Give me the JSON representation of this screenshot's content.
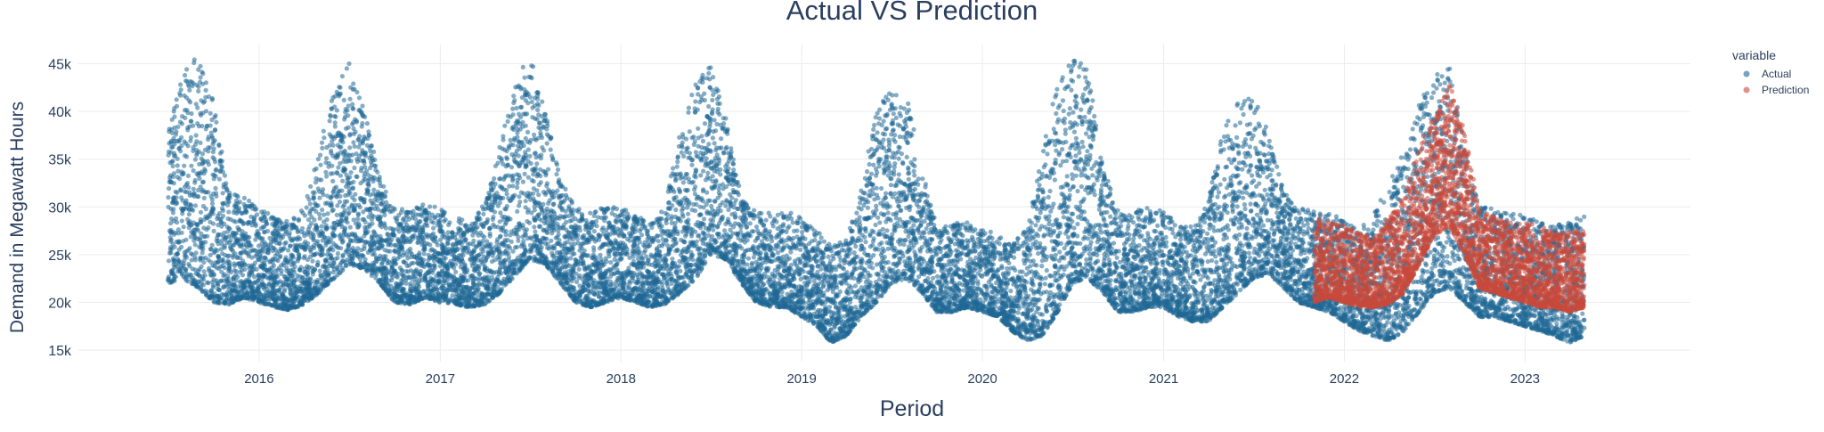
{
  "chart_data": {
    "type": "scatter",
    "title": "Actual VS Prediction",
    "xlabel": "Period",
    "ylabel": "Demand in Megawatt Hours",
    "x_ticks": [
      "2016",
      "2017",
      "2018",
      "2019",
      "2020",
      "2021",
      "2022",
      "2023"
    ],
    "y_ticks": [
      {
        "value": 15000,
        "label": "15k"
      },
      {
        "value": 20000,
        "label": "20k"
      },
      {
        "value": 25000,
        "label": "25k"
      },
      {
        "value": 30000,
        "label": "30k"
      },
      {
        "value": 35000,
        "label": "35k"
      },
      {
        "value": 40000,
        "label": "40k"
      },
      {
        "value": 45000,
        "label": "45k"
      }
    ],
    "xlim": [
      "2015-01-01",
      "2023-12-01"
    ],
    "ylim": [
      13800,
      47000
    ],
    "grid": true,
    "legend": {
      "title": "variable",
      "placement": "top-right"
    },
    "series": [
      {
        "name": "Actual",
        "color": "#1f6896",
        "x": [
          "2015-07-01",
          "2015-08-01",
          "2015-09-01",
          "2015-10-01",
          "2015-11-01",
          "2015-12-01",
          "2016-01-01",
          "2016-02-01",
          "2016-03-01",
          "2016-04-01",
          "2016-05-01",
          "2016-06-01",
          "2016-07-01",
          "2016-08-01",
          "2016-09-01",
          "2016-10-01",
          "2016-11-01",
          "2016-12-01",
          "2017-01-01",
          "2017-02-01",
          "2017-03-01",
          "2017-04-01",
          "2017-05-01",
          "2017-06-01",
          "2017-07-01",
          "2017-08-01",
          "2017-09-01",
          "2017-10-01",
          "2017-11-01",
          "2017-12-01",
          "2018-01-01",
          "2018-02-01",
          "2018-03-01",
          "2018-04-01",
          "2018-05-01",
          "2018-06-01",
          "2018-07-01",
          "2018-08-01",
          "2018-09-01",
          "2018-10-01",
          "2018-11-01",
          "2018-12-01",
          "2019-01-01",
          "2019-02-01",
          "2019-03-01",
          "2019-04-01",
          "2019-05-01",
          "2019-06-01",
          "2019-07-01",
          "2019-08-01",
          "2019-09-01",
          "2019-10-01",
          "2019-11-01",
          "2019-12-01",
          "2020-01-01",
          "2020-02-01",
          "2020-03-01",
          "2020-04-01",
          "2020-05-01",
          "2020-06-01",
          "2020-07-01",
          "2020-08-01",
          "2020-09-01",
          "2020-10-01",
          "2020-11-01",
          "2020-12-01",
          "2021-01-01",
          "2021-02-01",
          "2021-03-01",
          "2021-04-01",
          "2021-05-01",
          "2021-06-01",
          "2021-07-01",
          "2021-08-01",
          "2021-09-01",
          "2021-10-01",
          "2021-11-01",
          "2021-12-01",
          "2022-01-01",
          "2022-02-01",
          "2022-03-01",
          "2022-04-01",
          "2022-05-01",
          "2022-06-01",
          "2022-07-01",
          "2022-08-01",
          "2022-09-01",
          "2022-10-01",
          "2022-11-01",
          "2022-12-01",
          "2023-01-01",
          "2023-02-01",
          "2023-03-01",
          "2023-04-01",
          "2023-05-01"
        ],
        "y_min": [
          22000,
          22500,
          21500,
          20000,
          19800,
          20500,
          20000,
          19500,
          19200,
          19800,
          21000,
          22500,
          24000,
          23500,
          22000,
          20000,
          19800,
          20500,
          20000,
          19800,
          19500,
          19800,
          21000,
          22800,
          24500,
          24000,
          22000,
          20000,
          19500,
          20000,
          20500,
          20000,
          19500,
          19800,
          21000,
          22500,
          25000,
          24500,
          22000,
          20000,
          19500,
          19500,
          18500,
          17500,
          15800,
          16500,
          18500,
          20000,
          22000,
          22500,
          21000,
          19000,
          19000,
          19500,
          19000,
          18500,
          17000,
          16000,
          16500,
          19000,
          22000,
          22500,
          21000,
          19000,
          19000,
          19500,
          19500,
          18500,
          18000,
          18000,
          19500,
          21000,
          22500,
          23000,
          21500,
          20000,
          19500,
          19000,
          18000,
          17000,
          16500,
          16000,
          17000,
          19000,
          21000,
          21500,
          20000,
          18500,
          18500,
          18000,
          17500,
          17000,
          16500,
          15800,
          16500
        ],
        "y_max": [
          38000,
          44500,
          46000,
          41000,
          31500,
          31000,
          30000,
          29000,
          28500,
          30000,
          36000,
          42500,
          45500,
          40000,
          33000,
          30000,
          29500,
          31000,
          30000,
          29000,
          28500,
          30500,
          36500,
          43500,
          46000,
          40000,
          33000,
          30000,
          29500,
          30000,
          30000,
          29000,
          28500,
          30500,
          38000,
          43000,
          45500,
          40000,
          31000,
          29500,
          29500,
          29500,
          29000,
          27500,
          26000,
          26500,
          32000,
          40000,
          43500,
          42000,
          34000,
          28000,
          28500,
          28500,
          28000,
          27000,
          26000,
          28000,
          36000,
          43000,
          45800,
          44500,
          34000,
          30000,
          29500,
          30000,
          29500,
          28500,
          28000,
          31000,
          38000,
          42000,
          41500,
          38000,
          31500,
          30000,
          29500,
          29500,
          28500,
          28000,
          29500,
          32500,
          36000,
          41000,
          44500,
          46000,
          36000,
          30000,
          30000,
          29500,
          29000,
          28500,
          28000,
          28500,
          29500
        ]
      },
      {
        "name": "Prediction",
        "color": "#c9493a",
        "x": [
          "2021-11-01",
          "2021-12-01",
          "2022-01-01",
          "2022-02-01",
          "2022-03-01",
          "2022-04-01",
          "2022-05-01",
          "2022-06-01",
          "2022-07-01",
          "2022-08-01",
          "2022-09-01",
          "2022-10-01",
          "2022-11-01",
          "2022-12-01",
          "2023-01-01",
          "2023-02-01",
          "2023-03-01",
          "2023-04-01",
          "2023-05-01"
        ],
        "y_min": [
          20000,
          20500,
          20000,
          19500,
          19500,
          19800,
          21000,
          24000,
          27000,
          28000,
          25000,
          21500,
          21000,
          20500,
          20000,
          19500,
          19500,
          19000,
          19500
        ],
        "y_max": [
          29000,
          28500,
          28000,
          27500,
          27000,
          29000,
          31000,
          36500,
          39500,
          43000,
          38000,
          29500,
          29000,
          28500,
          28500,
          28000,
          27500,
          27500,
          28000
        ]
      }
    ]
  }
}
